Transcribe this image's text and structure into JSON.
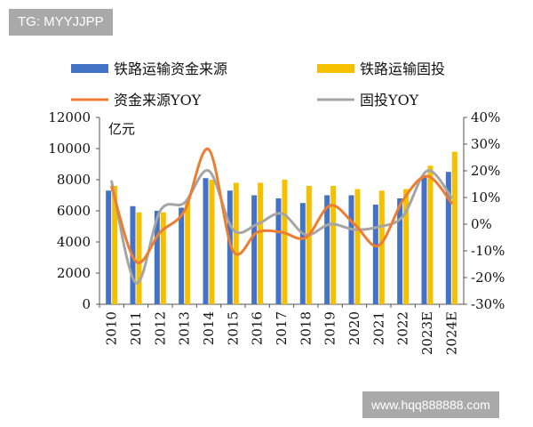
{
  "watermarks": {
    "top": "TG: MYYJJPP",
    "bottom": "www.hqq888888.com"
  },
  "chart_data": {
    "type": "bar",
    "categories": [
      "2010",
      "2011",
      "2012",
      "2013",
      "2014",
      "2015",
      "2016",
      "2017",
      "2018",
      "2019",
      "2020",
      "2021",
      "2022",
      "2023E",
      "2024E"
    ],
    "y_left_unit": "亿元",
    "y_left_ticks": [
      "0",
      "2000",
      "4000",
      "6000",
      "8000",
      "10000",
      "12000"
    ],
    "y_right_ticks": [
      "-30%",
      "-20%",
      "-10%",
      "0%",
      "10%",
      "20%",
      "30%",
      "40%"
    ],
    "ylim_left": [
      0,
      12000
    ],
    "ylim_right": [
      -0.3,
      0.4
    ],
    "legend_placement": "top",
    "series": [
      {
        "name": "铁路运输资金来源",
        "kind": "bar",
        "axis": "left",
        "color": "#4472C4",
        "values": [
          7300,
          6300,
          6000,
          6200,
          8100,
          7300,
          7000,
          6800,
          6500,
          7000,
          7000,
          6400,
          6800,
          8200,
          8500
        ]
      },
      {
        "name": "铁路运输固投",
        "kind": "bar",
        "axis": "left",
        "color": "#F5C000",
        "values": [
          7600,
          5900,
          5900,
          6600,
          8000,
          7800,
          7800,
          8000,
          7600,
          7600,
          7400,
          7300,
          7400,
          8900,
          9800
        ]
      },
      {
        "name": "资金来源YOY",
        "kind": "line",
        "axis": "right",
        "color": "#ED7D31",
        "values": [
          0.14,
          -0.14,
          -0.03,
          0.05,
          0.28,
          -0.1,
          -0.03,
          -0.03,
          -0.05,
          0.07,
          0.0,
          -0.08,
          0.09,
          0.18,
          0.08
        ]
      },
      {
        "name": "固投YOY",
        "kind": "line",
        "axis": "right",
        "color": "#A5A5A5",
        "values": [
          0.16,
          -0.22,
          0.05,
          0.08,
          0.2,
          -0.02,
          0.0,
          0.04,
          -0.04,
          0.0,
          -0.02,
          -0.01,
          0.03,
          0.2,
          0.1
        ]
      }
    ]
  }
}
